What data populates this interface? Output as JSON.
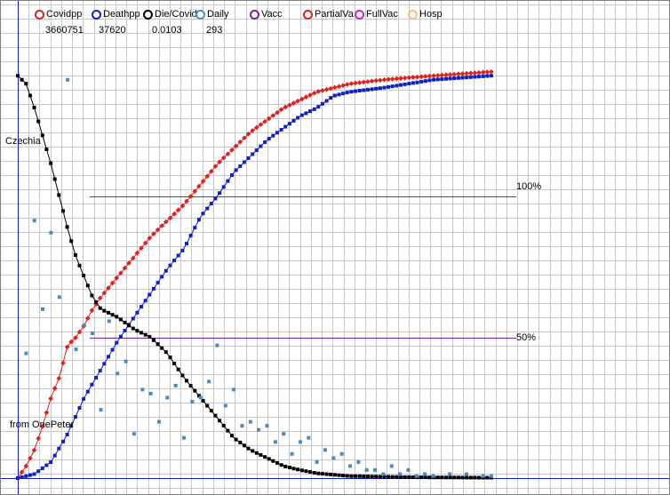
{
  "legend": [
    {
      "label": "Covidpp",
      "color": "#e0201a",
      "value": "3660751"
    },
    {
      "label": "Deathpp",
      "color": "#1020c0",
      "value": "37620"
    },
    {
      "label": "Die/Covid",
      "color": "#000000",
      "value": "0.0103"
    },
    {
      "label": "Daily",
      "color": "#4a8ac0",
      "value": "293"
    },
    {
      "label": "Vacc",
      "color": "#7020a0",
      "value": ""
    },
    {
      "label": "PartialVa",
      "color": "#e0201a",
      "value": ""
    },
    {
      "label": "FullVac",
      "color": "#d020d0",
      "value": ""
    },
    {
      "label": "Hosp",
      "color": "#f0c080",
      "value": ""
    }
  ],
  "annotations": {
    "country": "Czechia",
    "credit": "from OnePeter",
    "line100": "100%",
    "line50": "50%"
  },
  "chart_data": {
    "type": "scatter",
    "x": {
      "range": [
        0,
        60
      ],
      "grid": true,
      "grid_count": 60
    },
    "y": {
      "range": [
        0,
        1.08
      ],
      "grid": true
    },
    "reference_lines": [
      {
        "label": "100%",
        "value": 0.7,
        "color": "#c02020"
      },
      {
        "label": "50%",
        "value": 0.35,
        "color": "#7020a0"
      }
    ],
    "series": [
      {
        "name": "Covidpp",
        "color": "#e0201a",
        "n": 58,
        "markers": "diamond",
        "points": [
          [
            0,
            0
          ],
          [
            1,
            0.03
          ],
          [
            2,
            0.07
          ],
          [
            3,
            0.13
          ],
          [
            4,
            0.2
          ],
          [
            5,
            0.25
          ],
          [
            6,
            0.33
          ],
          [
            7,
            0.35
          ],
          [
            8,
            0.38
          ],
          [
            9,
            0.42
          ],
          [
            10,
            0.45
          ],
          [
            12,
            0.5
          ],
          [
            14,
            0.55
          ],
          [
            16,
            0.6
          ],
          [
            18,
            0.64
          ],
          [
            20,
            0.68
          ],
          [
            22,
            0.73
          ],
          [
            24,
            0.78
          ],
          [
            26,
            0.82
          ],
          [
            28,
            0.86
          ],
          [
            30,
            0.89
          ],
          [
            32,
            0.92
          ],
          [
            34,
            0.94
          ],
          [
            36,
            0.96
          ],
          [
            38,
            0.97
          ],
          [
            40,
            0.98
          ],
          [
            44,
            0.99
          ],
          [
            50,
            1.0
          ],
          [
            57,
            1.01
          ]
        ]
      },
      {
        "name": "Deathpp",
        "color": "#1020c0",
        "n": 58,
        "markers": "square",
        "points": [
          [
            0,
            0
          ],
          [
            2,
            0.01
          ],
          [
            4,
            0.04
          ],
          [
            6,
            0.11
          ],
          [
            8,
            0.2
          ],
          [
            10,
            0.27
          ],
          [
            12,
            0.34
          ],
          [
            14,
            0.4
          ],
          [
            16,
            0.46
          ],
          [
            18,
            0.52
          ],
          [
            20,
            0.57
          ],
          [
            22,
            0.65
          ],
          [
            24,
            0.7
          ],
          [
            26,
            0.76
          ],
          [
            28,
            0.8
          ],
          [
            30,
            0.84
          ],
          [
            32,
            0.87
          ],
          [
            34,
            0.9
          ],
          [
            36,
            0.92
          ],
          [
            38,
            0.95
          ],
          [
            40,
            0.96
          ],
          [
            44,
            0.97
          ],
          [
            50,
            0.99
          ],
          [
            57,
            1.0
          ]
        ]
      },
      {
        "name": "Die/Covid",
        "color": "#000000",
        "n": 58,
        "markers": "square",
        "points": [
          [
            0,
            1.0
          ],
          [
            1,
            0.98
          ],
          [
            2,
            0.92
          ],
          [
            3,
            0.85
          ],
          [
            4,
            0.78
          ],
          [
            5,
            0.7
          ],
          [
            6,
            0.62
          ],
          [
            7,
            0.55
          ],
          [
            8,
            0.5
          ],
          [
            9,
            0.45
          ],
          [
            10,
            0.42
          ],
          [
            12,
            0.4
          ],
          [
            14,
            0.37
          ],
          [
            16,
            0.35
          ],
          [
            18,
            0.31
          ],
          [
            20,
            0.25
          ],
          [
            22,
            0.2
          ],
          [
            24,
            0.15
          ],
          [
            26,
            0.1
          ],
          [
            28,
            0.07
          ],
          [
            30,
            0.05
          ],
          [
            32,
            0.03
          ],
          [
            34,
            0.02
          ],
          [
            36,
            0.012
          ],
          [
            40,
            0.005
          ],
          [
            48,
            0.002
          ],
          [
            57,
            0.001
          ]
        ]
      },
      {
        "name": "Daily",
        "color": "#4a8ac0",
        "markers": "square",
        "points": [
          [
            1,
            0.31
          ],
          [
            2,
            0.64
          ],
          [
            3,
            0.42
          ],
          [
            4,
            0.61
          ],
          [
            5,
            0.45
          ],
          [
            6,
            0.99
          ],
          [
            7,
            0.32
          ],
          [
            8,
            0.38
          ],
          [
            9,
            0.36
          ],
          [
            10,
            0.17
          ],
          [
            11,
            0.39
          ],
          [
            12,
            0.26
          ],
          [
            13,
            0.29
          ],
          [
            14,
            0.11
          ],
          [
            15,
            0.22
          ],
          [
            16,
            0.21
          ],
          [
            17,
            0.14
          ],
          [
            18,
            0.2
          ],
          [
            19,
            0.23
          ],
          [
            20,
            0.1
          ],
          [
            21,
            0.19
          ],
          [
            22,
            0.2
          ],
          [
            23,
            0.24
          ],
          [
            24,
            0.33
          ],
          [
            25,
            0.18
          ],
          [
            26,
            0.22
          ],
          [
            27,
            0.13
          ],
          [
            28,
            0.14
          ],
          [
            29,
            0.12
          ],
          [
            30,
            0.13
          ],
          [
            31,
            0.09
          ],
          [
            32,
            0.11
          ],
          [
            33,
            0.06
          ],
          [
            34,
            0.09
          ],
          [
            35,
            0.1
          ],
          [
            36,
            0.04
          ],
          [
            37,
            0.07
          ],
          [
            38,
            0.05
          ],
          [
            39,
            0.06
          ],
          [
            40,
            0.03
          ],
          [
            41,
            0.04
          ],
          [
            42,
            0.02
          ],
          [
            43,
            0.02
          ],
          [
            44,
            0.01
          ],
          [
            45,
            0.03
          ],
          [
            46,
            0.01
          ],
          [
            47,
            0.02
          ],
          [
            48,
            0.005
          ],
          [
            49,
            0.01
          ],
          [
            50,
            0.005
          ],
          [
            52,
            0.01
          ],
          [
            54,
            0.01
          ],
          [
            56,
            0.005
          ],
          [
            57,
            0.005
          ]
        ]
      }
    ]
  }
}
